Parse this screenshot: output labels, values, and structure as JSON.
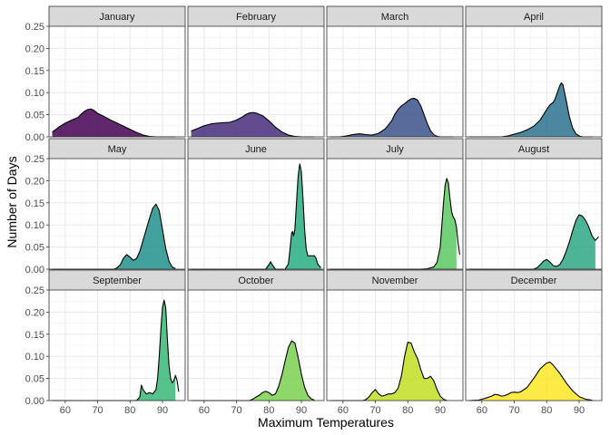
{
  "chart_data": {
    "type": "area",
    "kind": "faceted density",
    "xlabel": "Maximum Temperatures",
    "ylabel": "Number of Days",
    "xlim": [
      55,
      97
    ],
    "ylim": [
      0,
      0.25
    ],
    "xticks": [
      60,
      70,
      80,
      90
    ],
    "yticks": [
      0,
      0.05,
      0.1,
      0.15,
      0.2,
      0.25
    ],
    "ytick_labels": [
      "0.00",
      "0.05",
      "0.10",
      "0.15",
      "0.20",
      "0.25"
    ],
    "grid": true,
    "layout": {
      "rows": 3,
      "cols": 4
    },
    "fill_scale": "viridis",
    "facets": [
      {
        "name": "January",
        "color": "#440154",
        "x_start": 56,
        "x_end": 94,
        "fill_end": 94,
        "points": [
          [
            56,
            0.011
          ],
          [
            57,
            0.016
          ],
          [
            58,
            0.022
          ],
          [
            60,
            0.031
          ],
          [
            62,
            0.038
          ],
          [
            64,
            0.044
          ],
          [
            65,
            0.052
          ],
          [
            66,
            0.058
          ],
          [
            67,
            0.062
          ],
          [
            68,
            0.063
          ],
          [
            69,
            0.059
          ],
          [
            70,
            0.053
          ],
          [
            72,
            0.046
          ],
          [
            74,
            0.038
          ],
          [
            76,
            0.031
          ],
          [
            78,
            0.024
          ],
          [
            80,
            0.017
          ],
          [
            82,
            0.01
          ],
          [
            84,
            0.004
          ],
          [
            86,
            0.001
          ],
          [
            88,
            0.0
          ],
          [
            94,
            0.0
          ]
        ]
      },
      {
        "name": "February",
        "color": "#472D7B",
        "x_start": 56,
        "x_end": 94,
        "fill_end": 94,
        "points": [
          [
            56,
            0.013
          ],
          [
            58,
            0.019
          ],
          [
            60,
            0.025
          ],
          [
            62,
            0.029
          ],
          [
            64,
            0.031
          ],
          [
            66,
            0.032
          ],
          [
            68,
            0.033
          ],
          [
            70,
            0.038
          ],
          [
            72,
            0.046
          ],
          [
            73,
            0.051
          ],
          [
            74,
            0.054
          ],
          [
            75,
            0.055
          ],
          [
            76,
            0.054
          ],
          [
            78,
            0.048
          ],
          [
            80,
            0.036
          ],
          [
            82,
            0.022
          ],
          [
            84,
            0.011
          ],
          [
            86,
            0.004
          ],
          [
            88,
            0.001
          ],
          [
            90,
            0.0
          ],
          [
            94,
            0.0
          ]
        ]
      },
      {
        "name": "March",
        "color": "#3B528B",
        "x_start": 56,
        "x_end": 94,
        "fill_end": 94,
        "points": [
          [
            56,
            0.0
          ],
          [
            59,
            0.0
          ],
          [
            61,
            0.002
          ],
          [
            63,
            0.005
          ],
          [
            65,
            0.007
          ],
          [
            67,
            0.005
          ],
          [
            69,
            0.004
          ],
          [
            71,
            0.008
          ],
          [
            73,
            0.018
          ],
          [
            75,
            0.036
          ],
          [
            76,
            0.051
          ],
          [
            77,
            0.062
          ],
          [
            78,
            0.07
          ],
          [
            79,
            0.075
          ],
          [
            80,
            0.081
          ],
          [
            81,
            0.086
          ],
          [
            82,
            0.087
          ],
          [
            83,
            0.083
          ],
          [
            84,
            0.07
          ],
          [
            85,
            0.05
          ],
          [
            86,
            0.03
          ],
          [
            87,
            0.014
          ],
          [
            88,
            0.005
          ],
          [
            89,
            0.001
          ],
          [
            90,
            0.0
          ],
          [
            94,
            0.0
          ]
        ]
      },
      {
        "name": "April",
        "color": "#2C728E",
        "x_start": 56,
        "x_end": 94,
        "fill_end": 94,
        "points": [
          [
            56,
            0.0
          ],
          [
            66,
            0.0
          ],
          [
            68,
            0.002
          ],
          [
            70,
            0.006
          ],
          [
            72,
            0.01
          ],
          [
            74,
            0.016
          ],
          [
            76,
            0.024
          ],
          [
            78,
            0.038
          ],
          [
            79,
            0.05
          ],
          [
            80,
            0.062
          ],
          [
            81,
            0.072
          ],
          [
            82,
            0.078
          ],
          [
            82.5,
            0.084
          ],
          [
            83,
            0.095
          ],
          [
            84,
            0.115
          ],
          [
            84.5,
            0.122
          ],
          [
            85,
            0.118
          ],
          [
            86,
            0.083
          ],
          [
            87,
            0.045
          ],
          [
            88,
            0.02
          ],
          [
            89,
            0.007
          ],
          [
            90,
            0.002
          ],
          [
            91,
            0.0
          ],
          [
            94,
            0.0
          ]
        ]
      },
      {
        "name": "May",
        "color": "#21908C",
        "x_start": 56,
        "x_end": 94,
        "fill_end": 94,
        "points": [
          [
            56,
            0.0
          ],
          [
            75,
            0.0
          ],
          [
            76,
            0.003
          ],
          [
            77,
            0.01
          ],
          [
            78,
            0.025
          ],
          [
            79,
            0.033
          ],
          [
            80,
            0.027
          ],
          [
            81,
            0.02
          ],
          [
            82,
            0.024
          ],
          [
            83,
            0.04
          ],
          [
            84,
            0.065
          ],
          [
            85,
            0.09
          ],
          [
            86,
            0.115
          ],
          [
            87,
            0.138
          ],
          [
            88,
            0.147
          ],
          [
            89,
            0.132
          ],
          [
            90,
            0.09
          ],
          [
            91,
            0.047
          ],
          [
            92,
            0.018
          ],
          [
            93,
            0.005
          ],
          [
            94,
            0.001
          ]
        ]
      },
      {
        "name": "June",
        "color": "#27AD81",
        "x_start": 56,
        "x_end": 96,
        "fill_end": 96,
        "points": [
          [
            56,
            0.0
          ],
          [
            79,
            0.0
          ],
          [
            80,
            0.01
          ],
          [
            80.5,
            0.017
          ],
          [
            81,
            0.01
          ],
          [
            82,
            0.0
          ],
          [
            85,
            0.0
          ],
          [
            86,
            0.012
          ],
          [
            86.5,
            0.045
          ],
          [
            87,
            0.082
          ],
          [
            87.3,
            0.085
          ],
          [
            87.6,
            0.075
          ],
          [
            88,
            0.09
          ],
          [
            88.5,
            0.15
          ],
          [
            89,
            0.21
          ],
          [
            89.5,
            0.238
          ],
          [
            90,
            0.22
          ],
          [
            90.5,
            0.16
          ],
          [
            91,
            0.09
          ],
          [
            91.5,
            0.045
          ],
          [
            92,
            0.03
          ],
          [
            93,
            0.03
          ],
          [
            94,
            0.03
          ],
          [
            94.5,
            0.025
          ],
          [
            95,
            0.012
          ],
          [
            96,
            0.003
          ]
        ]
      },
      {
        "name": "July",
        "color": "#5DC863",
        "x_start": 56,
        "x_end": 96,
        "fill_end": 95,
        "points": [
          [
            56,
            0.0
          ],
          [
            84,
            0.0
          ],
          [
            86,
            0.001
          ],
          [
            88,
            0.005
          ],
          [
            89,
            0.015
          ],
          [
            90,
            0.05
          ],
          [
            90.5,
            0.1
          ],
          [
            91,
            0.15
          ],
          [
            91.5,
            0.19
          ],
          [
            92,
            0.205
          ],
          [
            92.5,
            0.195
          ],
          [
            93,
            0.16
          ],
          [
            93.5,
            0.13
          ],
          [
            94,
            0.118
          ],
          [
            94.5,
            0.112
          ],
          [
            95,
            0.095
          ],
          [
            95.5,
            0.06
          ],
          [
            96,
            0.033
          ]
        ]
      },
      {
        "name": "August",
        "color": "#2DA883",
        "x_start": 56,
        "x_end": 96,
        "fill_end": 95,
        "points": [
          [
            56,
            0.0
          ],
          [
            76,
            0.0
          ],
          [
            77,
            0.003
          ],
          [
            78,
            0.01
          ],
          [
            79,
            0.018
          ],
          [
            80,
            0.022
          ],
          [
            81,
            0.016
          ],
          [
            82,
            0.008
          ],
          [
            83,
            0.006
          ],
          [
            84,
            0.01
          ],
          [
            85,
            0.022
          ],
          [
            86,
            0.04
          ],
          [
            87,
            0.062
          ],
          [
            88,
            0.087
          ],
          [
            89,
            0.11
          ],
          [
            90,
            0.123
          ],
          [
            91,
            0.12
          ],
          [
            92,
            0.11
          ],
          [
            93,
            0.095
          ],
          [
            94,
            0.075
          ],
          [
            95,
            0.065
          ],
          [
            96,
            0.073
          ]
        ]
      },
      {
        "name": "September",
        "color": "#38B977",
        "x_start": 56,
        "x_end": 95,
        "fill_end": 94,
        "points": [
          [
            56,
            0.0
          ],
          [
            82,
            0.0
          ],
          [
            83,
            0.008
          ],
          [
            83.5,
            0.035
          ],
          [
            84,
            0.025
          ],
          [
            85,
            0.015
          ],
          [
            86,
            0.018
          ],
          [
            87,
            0.015
          ],
          [
            88,
            0.025
          ],
          [
            88.5,
            0.05
          ],
          [
            89,
            0.1
          ],
          [
            89.5,
            0.16
          ],
          [
            90,
            0.21
          ],
          [
            90.5,
            0.227
          ],
          [
            91,
            0.21
          ],
          [
            91.5,
            0.14
          ],
          [
            92,
            0.08
          ],
          [
            92.5,
            0.05
          ],
          [
            93,
            0.04
          ],
          [
            93.5,
            0.045
          ],
          [
            94,
            0.057
          ],
          [
            94.5,
            0.045
          ],
          [
            95,
            0.02
          ]
        ]
      },
      {
        "name": "October",
        "color": "#7AD151",
        "x_start": 56,
        "x_end": 94,
        "fill_end": 94,
        "points": [
          [
            56,
            0.0
          ],
          [
            74,
            0.0
          ],
          [
            75,
            0.003
          ],
          [
            76,
            0.008
          ],
          [
            77,
            0.012
          ],
          [
            78,
            0.018
          ],
          [
            79,
            0.021
          ],
          [
            80,
            0.018
          ],
          [
            81,
            0.012
          ],
          [
            82,
            0.015
          ],
          [
            83,
            0.032
          ],
          [
            84,
            0.058
          ],
          [
            85,
            0.09
          ],
          [
            86,
            0.12
          ],
          [
            87,
            0.135
          ],
          [
            88,
            0.13
          ],
          [
            89,
            0.098
          ],
          [
            90,
            0.06
          ],
          [
            91,
            0.03
          ],
          [
            92,
            0.012
          ],
          [
            93,
            0.004
          ],
          [
            94,
            0.001
          ]
        ]
      },
      {
        "name": "November",
        "color": "#C2DF23",
        "x_start": 56,
        "x_end": 92,
        "fill_end": 92,
        "points": [
          [
            56,
            0.0
          ],
          [
            66,
            0.0
          ],
          [
            67,
            0.002
          ],
          [
            68,
            0.008
          ],
          [
            69,
            0.018
          ],
          [
            70,
            0.025
          ],
          [
            71,
            0.015
          ],
          [
            72,
            0.01
          ],
          [
            73,
            0.012
          ],
          [
            74,
            0.015
          ],
          [
            75,
            0.015
          ],
          [
            76,
            0.018
          ],
          [
            77,
            0.028
          ],
          [
            78,
            0.055
          ],
          [
            79,
            0.1
          ],
          [
            80,
            0.132
          ],
          [
            81,
            0.13
          ],
          [
            82,
            0.11
          ],
          [
            83,
            0.095
          ],
          [
            84,
            0.07
          ],
          [
            85,
            0.05
          ],
          [
            86,
            0.05
          ],
          [
            87,
            0.055
          ],
          [
            88,
            0.045
          ],
          [
            89,
            0.025
          ],
          [
            90,
            0.01
          ],
          [
            91,
            0.003
          ],
          [
            92,
            0.0
          ]
        ]
      },
      {
        "name": "December",
        "color": "#FDE725",
        "x_start": 56,
        "x_end": 94,
        "fill_end": 94,
        "points": [
          [
            56,
            0.0
          ],
          [
            59,
            0.001
          ],
          [
            61,
            0.005
          ],
          [
            63,
            0.01
          ],
          [
            64,
            0.014
          ],
          [
            65,
            0.013
          ],
          [
            66,
            0.01
          ],
          [
            67,
            0.011
          ],
          [
            68,
            0.014
          ],
          [
            69,
            0.018
          ],
          [
            70,
            0.019
          ],
          [
            71,
            0.018
          ],
          [
            72,
            0.02
          ],
          [
            74,
            0.03
          ],
          [
            76,
            0.05
          ],
          [
            78,
            0.072
          ],
          [
            80,
            0.085
          ],
          [
            81,
            0.087
          ],
          [
            82,
            0.08
          ],
          [
            84,
            0.062
          ],
          [
            86,
            0.04
          ],
          [
            88,
            0.022
          ],
          [
            90,
            0.009
          ],
          [
            92,
            0.003
          ],
          [
            94,
            0.001
          ]
        ]
      }
    ]
  }
}
